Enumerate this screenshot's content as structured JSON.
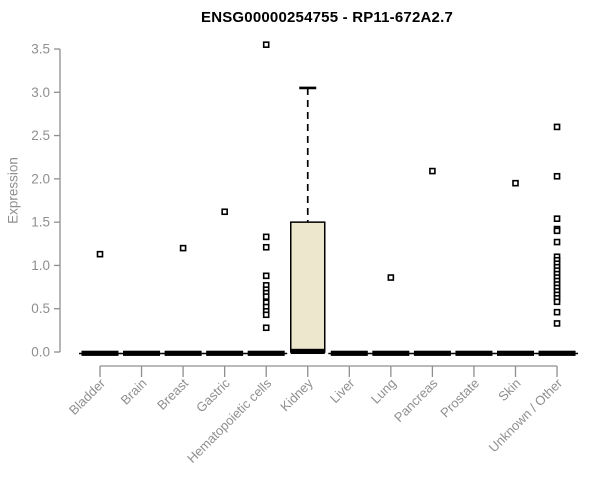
{
  "chart_data": {
    "type": "boxplot",
    "title": "ENSG00000254755 - RP11-672A2.7",
    "ylabel": "Expression",
    "xlabel": "",
    "ylim": [
      0,
      3.5
    ],
    "y_ticks": [
      "0.0",
      "0.5",
      "1.0",
      "1.5",
      "2.0",
      "2.5",
      "3.0",
      "3.5"
    ],
    "grid": false,
    "legend": false,
    "colors": {
      "box_fill": "#ece7cd",
      "shape": "#000000",
      "axis_text": "#8f8f8f",
      "axis_line": "#8f8f8f",
      "background": "#ffffff"
    },
    "categories": [
      "Bladder",
      "Brain",
      "Breast",
      "Gastric",
      "Hematopoietic cells",
      "Kidney",
      "Liver",
      "Lung",
      "Pancreas",
      "Prostate",
      "Skin",
      "Unknown / Other"
    ],
    "series": [
      {
        "category": "Bladder",
        "median": 0,
        "q1": 0,
        "q3": 0,
        "whisker_low": 0,
        "whisker_high": 0,
        "outliers": [
          1.13
        ]
      },
      {
        "category": "Brain",
        "median": 0,
        "q1": 0,
        "q3": 0,
        "whisker_low": 0,
        "whisker_high": 0,
        "outliers": []
      },
      {
        "category": "Breast",
        "median": 0,
        "q1": 0,
        "q3": 0,
        "whisker_low": 0,
        "whisker_high": 0,
        "outliers": [
          1.2
        ]
      },
      {
        "category": "Gastric",
        "median": 0,
        "q1": 0,
        "q3": 0,
        "whisker_low": 0,
        "whisker_high": 0,
        "outliers": [
          1.62
        ]
      },
      {
        "category": "Hematopoietic cells",
        "median": 0,
        "q1": 0,
        "q3": 0,
        "whisker_low": 0,
        "whisker_high": 0,
        "outliers": [
          3.55,
          1.33,
          1.21,
          0.88,
          0.77,
          0.72,
          0.68,
          0.64,
          0.57,
          0.52,
          0.47,
          0.43,
          0.28
        ]
      },
      {
        "category": "Kidney",
        "median": 0,
        "q1": 0,
        "q3": 1.5,
        "whisker_low": 0,
        "whisker_high": 3.05,
        "outliers": []
      },
      {
        "category": "Liver",
        "median": 0,
        "q1": 0,
        "q3": 0,
        "whisker_low": 0,
        "whisker_high": 0,
        "outliers": []
      },
      {
        "category": "Lung",
        "median": 0,
        "q1": 0,
        "q3": 0,
        "whisker_low": 0,
        "whisker_high": 0,
        "outliers": [
          0.86
        ]
      },
      {
        "category": "Pancreas",
        "median": 0,
        "q1": 0,
        "q3": 0,
        "whisker_low": 0,
        "whisker_high": 0,
        "outliers": [
          2.09
        ]
      },
      {
        "category": "Prostate",
        "median": 0,
        "q1": 0,
        "q3": 0,
        "whisker_low": 0,
        "whisker_high": 0,
        "outliers": []
      },
      {
        "category": "Skin",
        "median": 0,
        "q1": 0,
        "q3": 0,
        "whisker_low": 0,
        "whisker_high": 0,
        "outliers": [
          1.95
        ]
      },
      {
        "category": "Unknown / Other",
        "median": 0,
        "q1": 0,
        "q3": 0,
        "whisker_low": 0,
        "whisker_high": 0,
        "outliers": [
          2.6,
          2.03,
          1.54,
          1.42,
          1.4,
          1.27,
          1.1,
          1.06,
          1.02,
          0.98,
          0.94,
          0.9,
          0.86,
          0.82,
          0.78,
          0.74,
          0.7,
          0.66,
          0.62,
          0.58,
          0.46,
          0.33
        ]
      }
    ]
  }
}
